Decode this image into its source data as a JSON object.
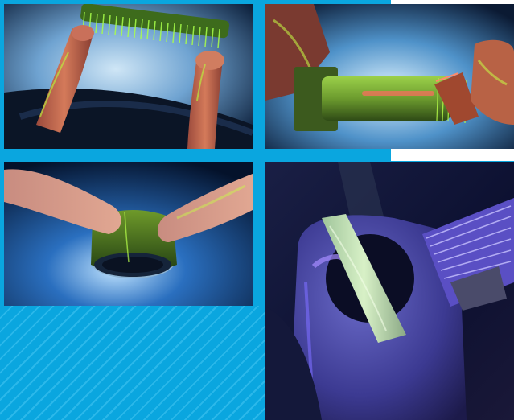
{
  "collage": {
    "photos": [
      {
        "subject": "fluorescent-bolt-held-by-fingers"
      },
      {
        "subject": "fluorescent-bolt-and-nut-under-uv"
      },
      {
        "subject": "fluorescent-ring-held-by-fingers"
      },
      {
        "subject": "fluorescent-plate-on-metal-part-under-blacklight"
      }
    ]
  },
  "colors": {
    "frame_blue": "#0aa6df",
    "uv_green": "#7fff3a",
    "uv_violet": "#5a2cff"
  }
}
